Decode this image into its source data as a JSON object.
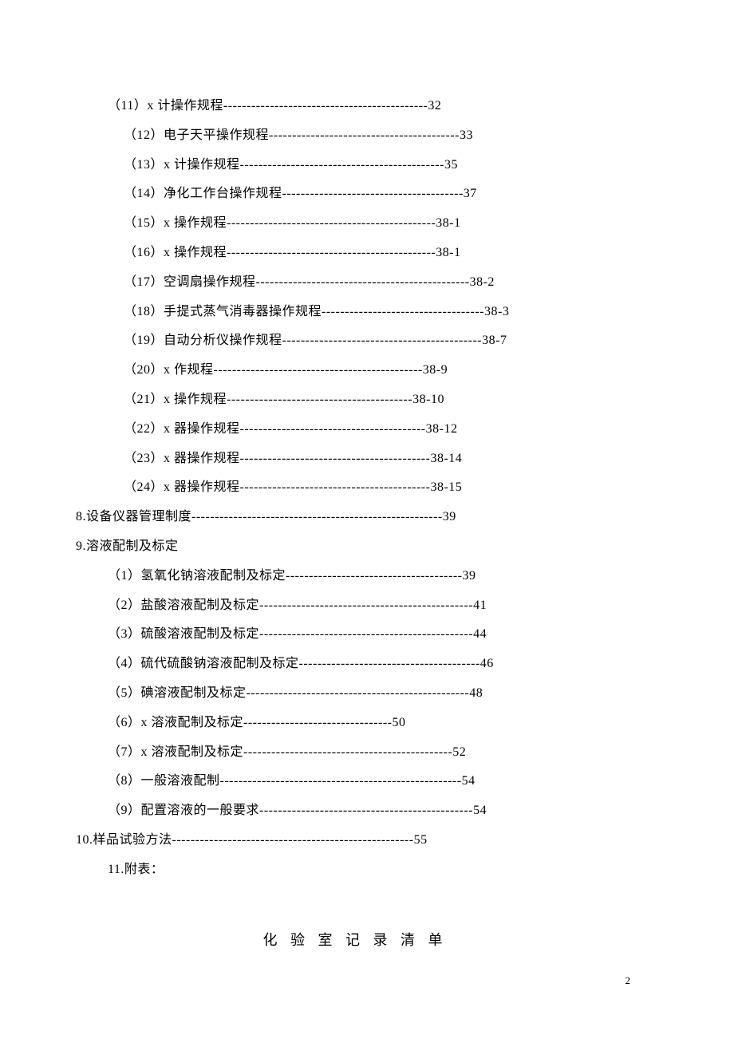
{
  "toc": {
    "items": [
      {
        "indent": "indent-1",
        "text": "（11）x 计操作规程--------------------------------------------32"
      },
      {
        "indent": "indent-2",
        "text": "（12）电子天平操作规程-----------------------------------------33"
      },
      {
        "indent": "indent-2",
        "text": "（13）x 计操作规程--------------------------------------------35"
      },
      {
        "indent": "indent-2",
        "text": "（14）净化工作台操作规程---------------------------------------37"
      },
      {
        "indent": "indent-2",
        "text": "（15）x 操作规程---------------------------------------------38-1"
      },
      {
        "indent": "indent-2",
        "text": "（16）x 操作规程---------------------------------------------38-1"
      },
      {
        "indent": "indent-2",
        "text": "（17）空调扇操作规程----------------------------------------------38-2"
      },
      {
        "indent": "indent-2",
        "text": "（18）手提式蒸气消毒器操作规程-----------------------------------38-3"
      },
      {
        "indent": "indent-2",
        "text": "（19）自动分析仪操作规程-------------------------------------------38-7"
      },
      {
        "indent": "indent-2",
        "text": "（20）x 作规程---------------------------------------------38-9"
      },
      {
        "indent": "indent-2",
        "text": "（21）x 操作规程----------------------------------------38-10"
      },
      {
        "indent": "indent-2",
        "text": "（22）x 器操作规程----------------------------------------38-12"
      },
      {
        "indent": "indent-2",
        "text": "（23）x 器操作规程-----------------------------------------38-14"
      },
      {
        "indent": "indent-2",
        "text": "（24）x 器操作规程-----------------------------------------38-15"
      },
      {
        "indent": "indent-0",
        "text": "8.设备仪器管理制度------------------------------------------------------39"
      },
      {
        "indent": "indent-0",
        "text": "9.溶液配制及标定"
      },
      {
        "indent": "indent-1",
        "text": "（1）氢氧化钠溶液配制及标定--------------------------------------39"
      },
      {
        "indent": "indent-1",
        "text": "（2）盐酸溶液配制及标定----------------------------------------------41"
      },
      {
        "indent": "indent-1",
        "text": "（3）硫酸溶液配制及标定----------------------------------------------44"
      },
      {
        "indent": "indent-1",
        "text": "（4）硫代硫酸钠溶液配制及标定---------------------------------------46"
      },
      {
        "indent": "indent-1",
        "text": "（5）碘溶液配制及标定------------------------------------------------48"
      },
      {
        "indent": "indent-1",
        "text": "（6）x 溶液配制及标定--------------------------------50"
      },
      {
        "indent": "indent-1",
        "text": "（7）x 溶液配制及标定---------------------------------------------52"
      },
      {
        "indent": "indent-1",
        "text": "（8）一般溶液配制----------------------------------------------------54"
      },
      {
        "indent": "indent-1",
        "text": "（9）配置溶液的一般要求----------------------------------------------54"
      },
      {
        "indent": "indent-0",
        "text": "10.样品试验方法----------------------------------------------------55"
      },
      {
        "indent": "indent-0 section-header",
        "text": " 11.附表："
      }
    ]
  },
  "bottomTitle": "化 验 室 记 录 清 单",
  "pageNumber": "2"
}
